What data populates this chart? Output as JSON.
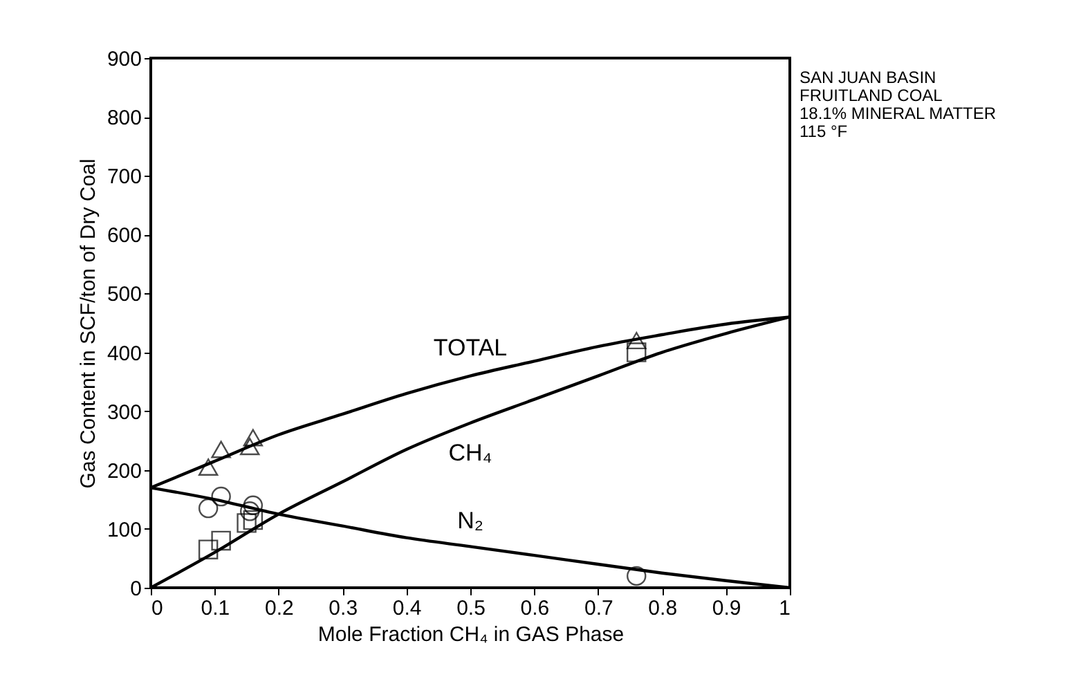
{
  "chart_data": {
    "type": "line",
    "xlabel": "Mole Fraction CH₄ in GAS Phase",
    "ylabel": "Gas Content in SCF/ton of Dry Coal",
    "annotations": [
      "SAN JUAN BASIN",
      "FRUITLAND COAL",
      "18.1% MINERAL MATTER",
      "115 °F"
    ],
    "xlim": [
      0,
      1
    ],
    "xticks": [
      0,
      0.1,
      0.2,
      0.3,
      0.4,
      0.5,
      0.6,
      0.7,
      0.8,
      0.9,
      1
    ],
    "ylim": [
      0,
      900
    ],
    "yticks": [
      0,
      100,
      200,
      300,
      400,
      500,
      600,
      700,
      800,
      900
    ],
    "grid": false,
    "series": [
      {
        "name": "TOTAL",
        "color": "#000000",
        "marker": "none",
        "x": [
          0,
          0.1,
          0.2,
          0.3,
          0.4,
          0.5,
          0.6,
          0.7,
          0.8,
          0.9,
          1
        ],
        "values": [
          170,
          215,
          260,
          295,
          330,
          360,
          385,
          410,
          430,
          448,
          460
        ]
      },
      {
        "name": "CH₄",
        "color": "#000000",
        "marker": "none",
        "x": [
          0,
          0.1,
          0.2,
          0.3,
          0.4,
          0.5,
          0.6,
          0.7,
          0.8,
          0.9,
          1
        ],
        "values": [
          0,
          60,
          125,
          180,
          235,
          280,
          320,
          360,
          400,
          432,
          460
        ]
      },
      {
        "name": "N₂",
        "color": "#000000",
        "marker": "none",
        "x": [
          0,
          0.1,
          0.2,
          0.3,
          0.4,
          0.5,
          0.6,
          0.7,
          0.8,
          0.9,
          1
        ],
        "values": [
          170,
          150,
          125,
          105,
          85,
          70,
          55,
          40,
          25,
          12,
          0
        ]
      },
      {
        "type": "scatter",
        "color": "#000000",
        "marker": "triangle",
        "x": [
          0.09,
          0.11,
          0.155,
          0.16,
          0.76
        ],
        "values": [
          205,
          235,
          240,
          255,
          420
        ]
      },
      {
        "type": "scatter",
        "color": "#000000",
        "marker": "square",
        "x": [
          0.09,
          0.11,
          0.15,
          0.16,
          0.76
        ],
        "values": [
          65,
          80,
          110,
          115,
          400
        ]
      },
      {
        "type": "scatter",
        "color": "#000000",
        "marker": "circle",
        "x": [
          0.09,
          0.11,
          0.155,
          0.16,
          0.76
        ],
        "values": [
          135,
          155,
          130,
          140,
          20
        ]
      }
    ]
  }
}
